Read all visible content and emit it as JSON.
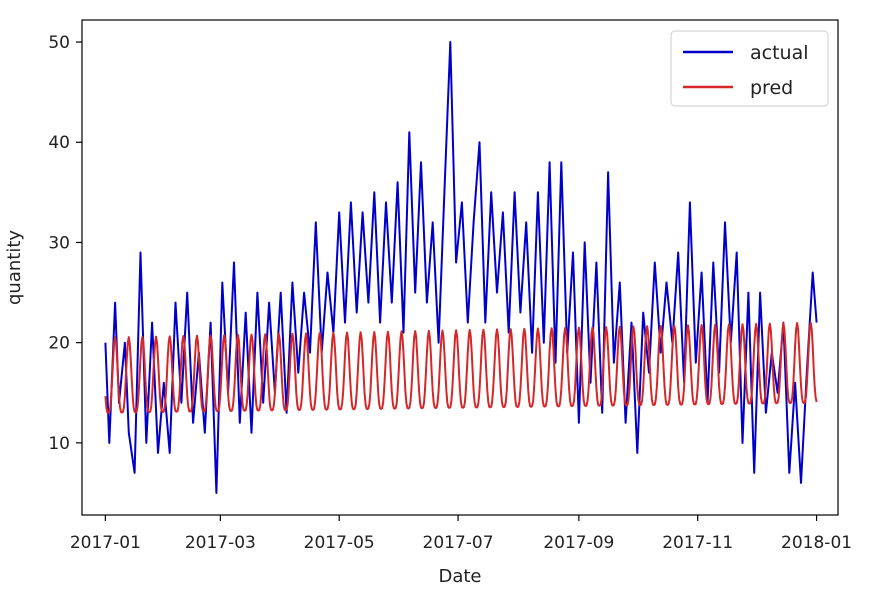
{
  "chart_data": {
    "type": "line",
    "title": "",
    "xlabel": "Date",
    "ylabel": "quantity",
    "x_range": [
      "2016-12-20",
      "2018-01-12"
    ],
    "ylim": [
      2.8,
      52.2
    ],
    "x_ticks": [
      {
        "date": "2017-01-01",
        "label": "2017-01"
      },
      {
        "date": "2017-03-01",
        "label": "2017-03"
      },
      {
        "date": "2017-05-01",
        "label": "2017-05"
      },
      {
        "date": "2017-07-01",
        "label": "2017-07"
      },
      {
        "date": "2017-09-01",
        "label": "2017-09"
      },
      {
        "date": "2017-11-01",
        "label": "2017-11"
      },
      {
        "date": "2018-01-01",
        "label": "2018-01"
      }
    ],
    "y_ticks": [
      10,
      20,
      30,
      40,
      50
    ],
    "grid": false,
    "legend": "top-right",
    "series": [
      {
        "name": "actual",
        "color": "#0000cc",
        "points": [
          [
            "2017-01-01",
            20
          ],
          [
            "2017-01-03",
            10
          ],
          [
            "2017-01-06",
            24
          ],
          [
            "2017-01-08",
            14
          ],
          [
            "2017-01-11",
            20
          ],
          [
            "2017-01-13",
            11
          ],
          [
            "2017-01-16",
            7
          ],
          [
            "2017-01-19",
            29
          ],
          [
            "2017-01-22",
            10
          ],
          [
            "2017-01-25",
            22
          ],
          [
            "2017-01-28",
            9
          ],
          [
            "2017-01-31",
            16
          ],
          [
            "2017-02-03",
            9
          ],
          [
            "2017-02-06",
            24
          ],
          [
            "2017-02-09",
            14
          ],
          [
            "2017-02-12",
            25
          ],
          [
            "2017-02-15",
            12
          ],
          [
            "2017-02-18",
            19
          ],
          [
            "2017-02-21",
            11
          ],
          [
            "2017-02-24",
            22
          ],
          [
            "2017-02-27",
            5
          ],
          [
            "2017-03-02",
            26
          ],
          [
            "2017-03-05",
            15
          ],
          [
            "2017-03-08",
            28
          ],
          [
            "2017-03-11",
            12
          ],
          [
            "2017-03-14",
            23
          ],
          [
            "2017-03-17",
            11
          ],
          [
            "2017-03-20",
            25
          ],
          [
            "2017-03-23",
            14
          ],
          [
            "2017-03-26",
            24
          ],
          [
            "2017-03-29",
            15
          ],
          [
            "2017-04-01",
            25
          ],
          [
            "2017-04-04",
            13
          ],
          [
            "2017-04-07",
            26
          ],
          [
            "2017-04-10",
            17
          ],
          [
            "2017-04-13",
            25
          ],
          [
            "2017-04-16",
            19
          ],
          [
            "2017-04-19",
            32
          ],
          [
            "2017-04-22",
            19
          ],
          [
            "2017-04-25",
            27
          ],
          [
            "2017-04-28",
            21
          ],
          [
            "2017-05-01",
            33
          ],
          [
            "2017-05-04",
            22
          ],
          [
            "2017-05-07",
            34
          ],
          [
            "2017-05-10",
            23
          ],
          [
            "2017-05-13",
            33
          ],
          [
            "2017-05-16",
            24
          ],
          [
            "2017-05-19",
            35
          ],
          [
            "2017-05-22",
            22
          ],
          [
            "2017-05-25",
            34
          ],
          [
            "2017-05-28",
            24
          ],
          [
            "2017-05-31",
            36
          ],
          [
            "2017-06-03",
            21
          ],
          [
            "2017-06-06",
            41
          ],
          [
            "2017-06-09",
            25
          ],
          [
            "2017-06-12",
            38
          ],
          [
            "2017-06-15",
            24
          ],
          [
            "2017-06-18",
            32
          ],
          [
            "2017-06-21",
            20
          ],
          [
            "2017-06-24",
            35
          ],
          [
            "2017-06-27",
            50
          ],
          [
            "2017-06-30",
            28
          ],
          [
            "2017-07-03",
            34
          ],
          [
            "2017-07-06",
            22
          ],
          [
            "2017-07-09",
            32
          ],
          [
            "2017-07-12",
            40
          ],
          [
            "2017-07-15",
            22
          ],
          [
            "2017-07-18",
            35
          ],
          [
            "2017-07-21",
            25
          ],
          [
            "2017-07-24",
            33
          ],
          [
            "2017-07-27",
            21
          ],
          [
            "2017-07-30",
            35
          ],
          [
            "2017-08-02",
            23
          ],
          [
            "2017-08-05",
            32
          ],
          [
            "2017-08-08",
            19
          ],
          [
            "2017-08-11",
            35
          ],
          [
            "2017-08-14",
            20
          ],
          [
            "2017-08-17",
            38
          ],
          [
            "2017-08-20",
            18
          ],
          [
            "2017-08-23",
            38
          ],
          [
            "2017-08-26",
            19
          ],
          [
            "2017-08-29",
            29
          ],
          [
            "2017-09-01",
            12
          ],
          [
            "2017-09-04",
            30
          ],
          [
            "2017-09-07",
            16
          ],
          [
            "2017-09-10",
            28
          ],
          [
            "2017-09-13",
            13
          ],
          [
            "2017-09-16",
            37
          ],
          [
            "2017-09-19",
            18
          ],
          [
            "2017-09-22",
            26
          ],
          [
            "2017-09-25",
            12
          ],
          [
            "2017-09-28",
            22
          ],
          [
            "2017-10-01",
            9
          ],
          [
            "2017-10-04",
            23
          ],
          [
            "2017-10-07",
            17
          ],
          [
            "2017-10-10",
            28
          ],
          [
            "2017-10-13",
            19
          ],
          [
            "2017-10-16",
            26
          ],
          [
            "2017-10-19",
            20
          ],
          [
            "2017-10-22",
            29
          ],
          [
            "2017-10-25",
            16
          ],
          [
            "2017-10-28",
            34
          ],
          [
            "2017-10-31",
            18
          ],
          [
            "2017-11-03",
            27
          ],
          [
            "2017-11-06",
            14
          ],
          [
            "2017-11-09",
            28
          ],
          [
            "2017-11-12",
            17
          ],
          [
            "2017-11-15",
            32
          ],
          [
            "2017-11-18",
            20
          ],
          [
            "2017-11-21",
            29
          ],
          [
            "2017-11-24",
            10
          ],
          [
            "2017-11-27",
            25
          ],
          [
            "2017-11-30",
            7
          ],
          [
            "2017-12-03",
            25
          ],
          [
            "2017-12-06",
            13
          ],
          [
            "2017-12-09",
            19
          ],
          [
            "2017-12-12",
            15
          ],
          [
            "2017-12-15",
            22
          ],
          [
            "2017-12-18",
            7
          ],
          [
            "2017-12-21",
            16
          ],
          [
            "2017-12-24",
            6
          ],
          [
            "2017-12-27",
            17
          ],
          [
            "2017-12-30",
            27
          ],
          [
            "2018-01-01",
            22
          ]
        ]
      },
      {
        "name": "pred",
        "color": "#d62728",
        "model": {
          "start": "2017-01-01",
          "end": "2018-01-01",
          "period_days": 7,
          "floor_start": 13.0,
          "floor_end": 14.0,
          "peak_start": 20.5,
          "peak_end": 22.0,
          "peak_weekday_offset": 2
        }
      }
    ]
  }
}
